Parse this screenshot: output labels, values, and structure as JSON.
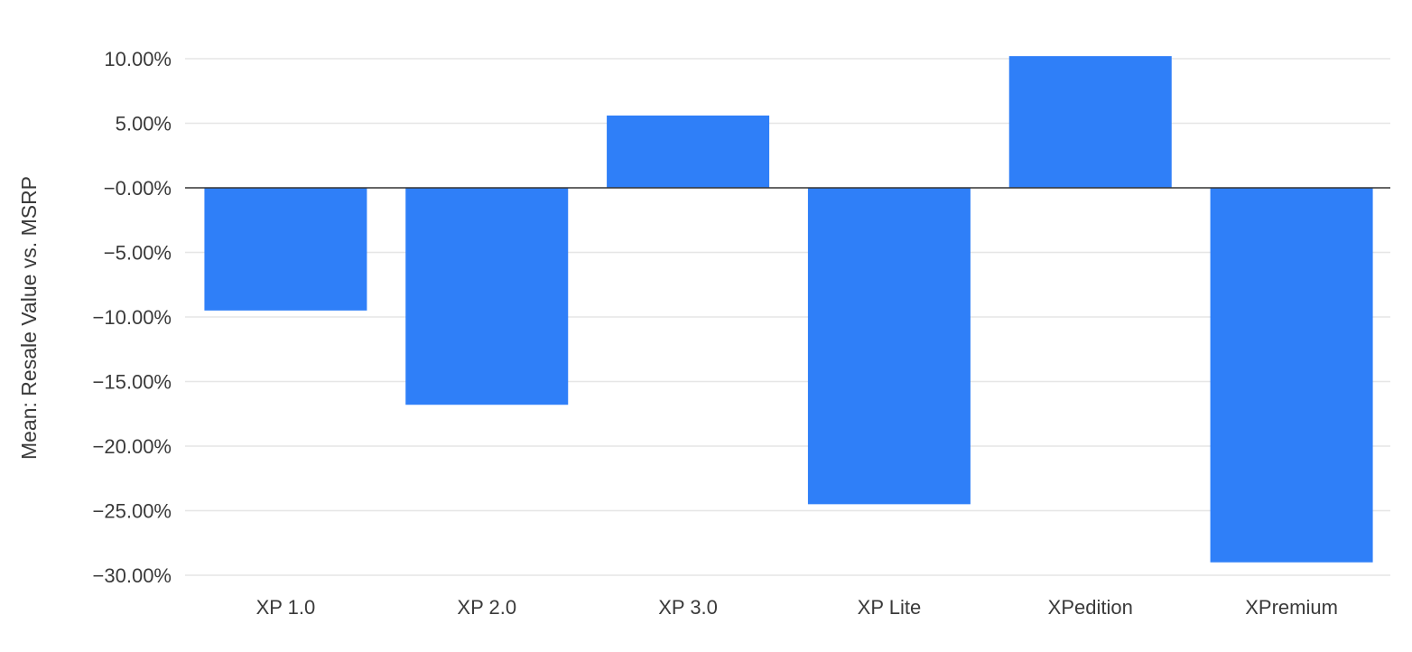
{
  "chart_data": {
    "type": "bar",
    "title": "",
    "xlabel": "",
    "ylabel": "Mean: Resale Value vs. MSRP",
    "categories": [
      "XP 1.0",
      "XP 2.0",
      "XP 3.0",
      "XP Lite",
      "XPedition",
      "XPremium"
    ],
    "series": [
      {
        "values": [
          -9.5,
          -16.8,
          5.6,
          -24.5,
          10.2,
          -29.0
        ]
      }
    ],
    "ylim": [
      -31,
      11.5
    ],
    "yticks": [
      10,
      5,
      0,
      -5,
      -10,
      -15,
      -20,
      -25,
      -30
    ],
    "ytick_labels": [
      "10.00%",
      "5.00%",
      "−0.00%",
      "−5.00%",
      "−10.00%",
      "−15.00%",
      "−20.00%",
      "−25.00%",
      "−30.00%"
    ],
    "grid": true,
    "legend": "none",
    "colors": {
      "bar": "#2f7ff8",
      "grid": "#e6e6e6",
      "zero_line": "#333333",
      "text": "#3a3a3a"
    }
  }
}
